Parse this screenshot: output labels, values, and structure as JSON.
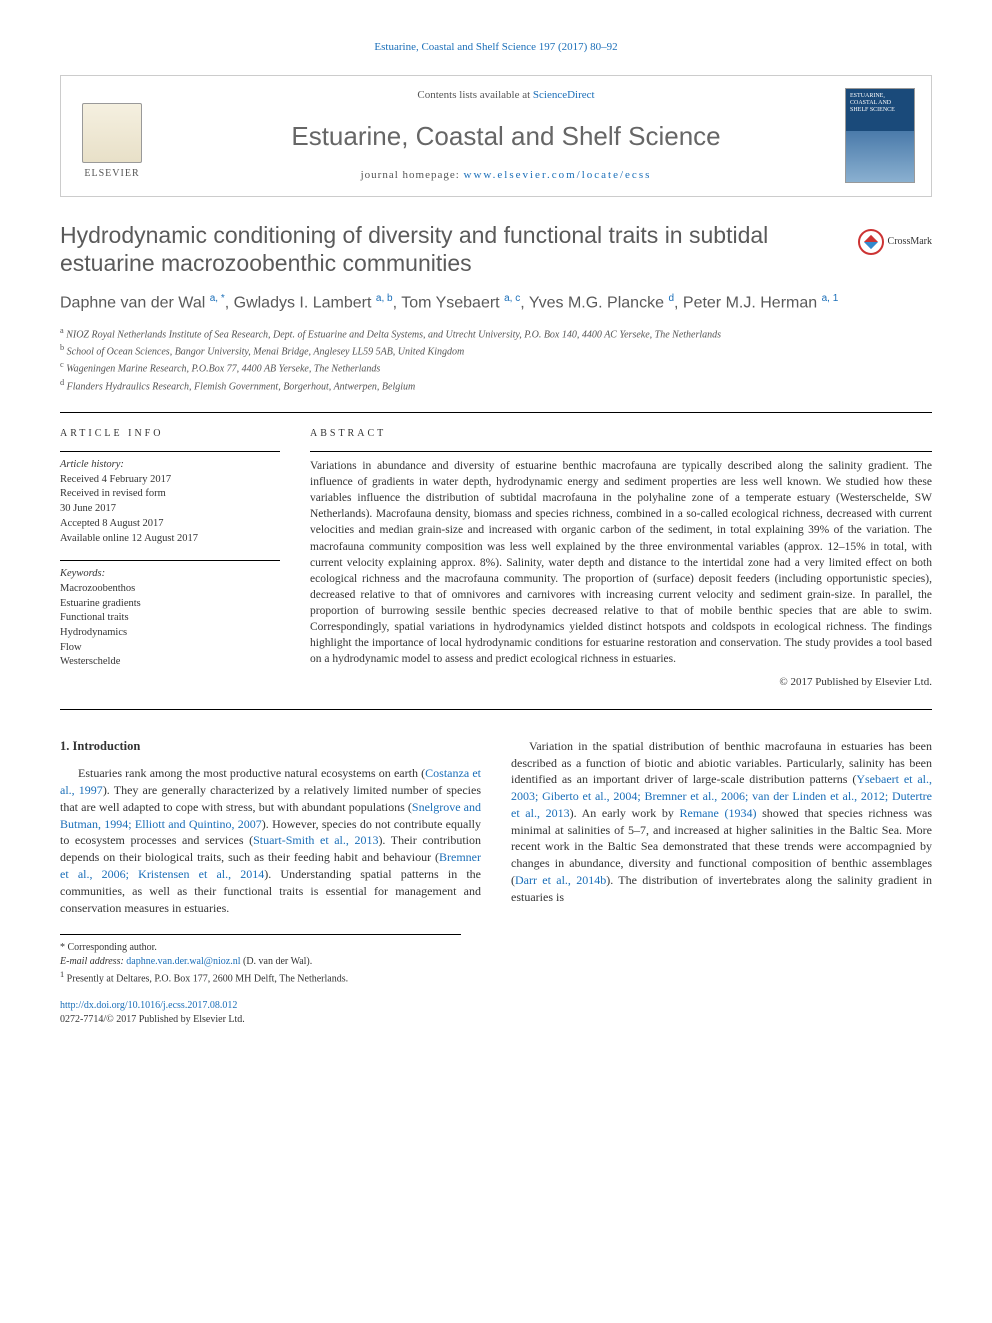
{
  "running_header": {
    "text_a": "Estuarine, Coastal and Shelf Science 197 (2017) 80–92",
    "link_color": "#1a6eb8"
  },
  "masthead": {
    "contents_prefix": "Contents lists available at ",
    "contents_link": "ScienceDirect",
    "journal_name": "Estuarine, Coastal and Shelf Science",
    "homepage_prefix": "journal homepage: ",
    "homepage_url": "www.elsevier.com/locate/ecss",
    "elsevier_label": "ELSEVIER",
    "cover_text": "ESTUARINE, COASTAL AND SHELF SCIENCE"
  },
  "article": {
    "title": "Hydrodynamic conditioning of diversity and functional traits in subtidal estuarine macrozoobenthic communities",
    "crossmark_label": "CrossMark"
  },
  "authors": {
    "a1_name": "Daphne van der Wal",
    "a1_sup": "a, *",
    "a2_name": "Gwladys I. Lambert",
    "a2_sup": "a, b",
    "a3_name": "Tom Ysebaert",
    "a3_sup": "a, c",
    "a4_name": "Yves M.G. Plancke",
    "a4_sup": "d",
    "a5_name": "Peter M.J. Herman",
    "a5_sup": "a, 1"
  },
  "affiliations": {
    "a": "NIOZ Royal Netherlands Institute of Sea Research, Dept. of Estuarine and Delta Systems, and Utrecht University, P.O. Box 140, 4400 AC Yerseke, The Netherlands",
    "b": "School of Ocean Sciences, Bangor University, Menai Bridge, Anglesey LL59 5AB, United Kingdom",
    "c": "Wageningen Marine Research, P.O.Box 77, 4400 AB Yerseke, The Netherlands",
    "d": "Flanders Hydraulics Research, Flemish Government, Borgerhout, Antwerpen, Belgium"
  },
  "article_info": {
    "label": "ARTICLE INFO",
    "history_label": "Article history:",
    "received": "Received 4 February 2017",
    "revised": "Received in revised form",
    "revised_date": "30 June 2017",
    "accepted": "Accepted 8 August 2017",
    "online": "Available online 12 August 2017",
    "keywords_label": "Keywords:",
    "keywords": [
      "Macrozoobenthos",
      "Estuarine gradients",
      "Functional traits",
      "Hydrodynamics",
      "Flow",
      "Westerschelde"
    ]
  },
  "abstract": {
    "label": "ABSTRACT",
    "text": "Variations in abundance and diversity of estuarine benthic macrofauna are typically described along the salinity gradient. The influence of gradients in water depth, hydrodynamic energy and sediment properties are less well known. We studied how these variables influence the distribution of subtidal macrofauna in the polyhaline zone of a temperate estuary (Westerschelde, SW Netherlands). Macrofauna density, biomass and species richness, combined in a so-called ecological richness, decreased with current velocities and median grain-size and increased with organic carbon of the sediment, in total explaining 39% of the variation. The macrofauna community composition was less well explained by the three environmental variables (approx. 12–15% in total, with current velocity explaining approx. 8%). Salinity, water depth and distance to the intertidal zone had a very limited effect on both ecological richness and the macrofauna community. The proportion of (surface) deposit feeders (including opportunistic species), decreased relative to that of omnivores and carnivores with increasing current velocity and sediment grain-size. In parallel, the proportion of burrowing sessile benthic species decreased relative to that of mobile benthic species that are able to swim. Correspondingly, spatial variations in hydrodynamics yielded distinct hotspots and coldspots in ecological richness. The findings highlight the importance of local hydrodynamic conditions for estuarine restoration and conservation. The study provides a tool based on a hydrodynamic model to assess and predict ecological richness in estuaries.",
    "copyright": "© 2017 Published by Elsevier Ltd."
  },
  "introduction": {
    "heading": "1. Introduction",
    "para1_a": "Estuaries rank among the most productive natural ecosystems on earth (",
    "cite1": "Costanza et al., 1997",
    "para1_b": "). They are generally characterized by a relatively limited number of species that are well adapted to cope with stress, but with abundant populations (",
    "cite2": "Snelgrove and Butman, 1994; Elliott and Quintino, 2007",
    "para1_c": "). However, species do not contribute equally to ecosystem processes and services (",
    "cite3": "Stuart-Smith et al., 2013",
    "para1_d": "). Their contribution depends on their biological traits, such as their feeding habit and behaviour (",
    "cite4": "Bremner et al.,",
    "para2_a": "",
    "cite5": "2006; Kristensen et al., 2014",
    "para2_b": "). Understanding spatial patterns in the communities, as well as their functional traits is essential for management and conservation measures in estuaries.",
    "para3_a": "Variation in the spatial distribution of benthic macrofauna in estuaries has been described as a function of biotic and abiotic variables. Particularly, salinity has been identified as an important driver of large-scale distribution patterns (",
    "cite6": "Ysebaert et al., 2003; Giberto et al., 2004; Bremner et al., 2006; van der Linden et al., 2012; Dutertre et al., 2013",
    "para3_b": "). An early work by ",
    "cite7": "Remane (1934)",
    "para3_c": " showed that species richness was minimal at salinities of 5–7, and increased at higher salinities in the Baltic Sea. More recent work in the Baltic Sea demonstrated that these trends were accompagnied by changes in abundance, diversity and functional composition of benthic assemblages (",
    "cite8": "Darr et al., 2014b",
    "para3_d": "). The distribution of invertebrates along the salinity gradient in estuaries is"
  },
  "footnotes": {
    "corr_label": "* Corresponding author.",
    "email_label": "E-mail address: ",
    "email": "daphne.van.der.wal@nioz.nl",
    "email_suffix": " (D. van der Wal).",
    "note1": "Presently at Deltares, P.O. Box 177, 2600 MH Delft, The Netherlands.",
    "note1_sup": "1"
  },
  "doi": {
    "url": "http://dx.doi.org/10.1016/j.ecss.2017.08.012",
    "issn": "0272-7714/© 2017 Published by Elsevier Ltd."
  },
  "colors": {
    "link": "#1a6eb8",
    "heading_gray": "#5a5a5a",
    "text": "#333333",
    "rule": "#000000"
  },
  "typography": {
    "body_font": "Georgia, Times New Roman, serif",
    "heading_font": "Trebuchet MS, Arial, sans-serif",
    "title_size_pt": 23,
    "journal_name_size_pt": 26,
    "body_size_pt": 12,
    "abstract_size_pt": 11.5,
    "info_size_pt": 10.5,
    "footnote_size_pt": 10
  }
}
